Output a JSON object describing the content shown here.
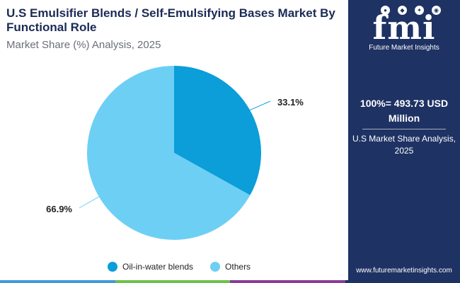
{
  "header": {
    "title": "U.S Emulsifier Blends / Self-Emulsifying Bases Market By Functional Role",
    "subtitle": "Market Share (%) Analysis, 2025"
  },
  "sidebar": {
    "logo_mark": "fmi",
    "logo_text": "Future Market Insights",
    "total_value": "100%= 493.73 USD Million",
    "total_caption": "U.S Market Share Analysis, 2025",
    "url": "www.futuremarketinsights.com",
    "background_color": "#1e3264"
  },
  "colors": {
    "accent_bar": [
      "#3e9ad6",
      "#6cc24a",
      "#8a3a9a",
      "#1e3264"
    ]
  },
  "chart_data": {
    "type": "pie",
    "slices": [
      {
        "label": "Oil-in-water blends",
        "value": 33.1,
        "display": "33.1%",
        "color": "#0b9ed9"
      },
      {
        "label": "Others",
        "value": 66.9,
        "display": "66.9%",
        "color": "#6ecff5"
      }
    ],
    "start": "12 o'clock",
    "direction": "clockwise",
    "legend_position": "bottom"
  }
}
